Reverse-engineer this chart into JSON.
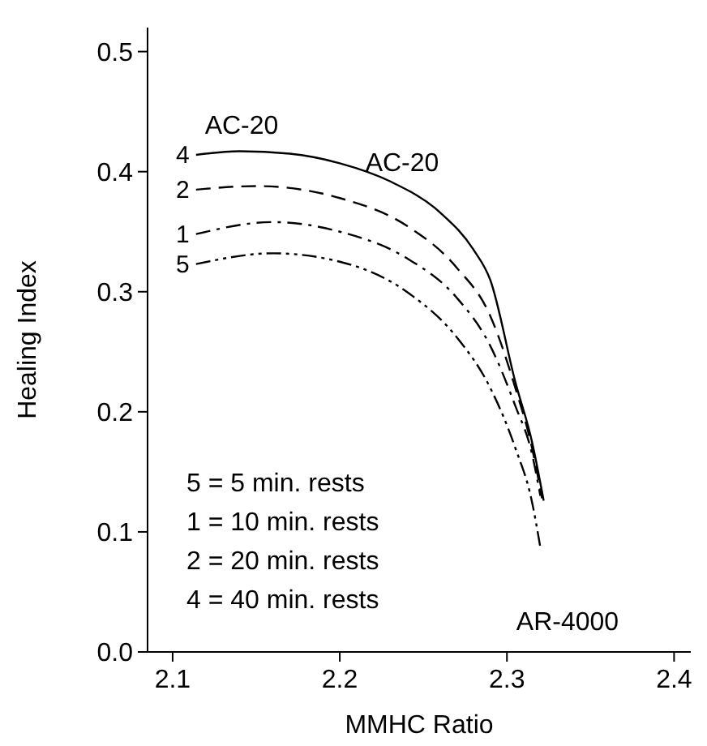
{
  "chart_data": {
    "type": "line",
    "xlabel": "MMHC Ratio",
    "ylabel": "Healing Index",
    "xlim": [
      2.085,
      2.41
    ],
    "ylim": [
      0,
      0.52
    ],
    "xticks": [
      2.1,
      2.2,
      2.3,
      2.4
    ],
    "yticks": [
      {
        "value": 0,
        "label": "0.0"
      },
      0.1,
      0.2,
      0.3,
      0.4,
      0.5
    ],
    "marker": "none",
    "series": [
      {
        "name": "4",
        "color": "#000000",
        "line_style": "solid",
        "x": [
          2.114,
          2.14,
          2.17,
          2.2,
          2.23,
          2.26,
          2.28,
          2.29,
          2.305,
          2.315,
          2.322
        ],
        "values": [
          0.414,
          0.417,
          0.415,
          0.407,
          0.392,
          0.366,
          0.335,
          0.31,
          0.225,
          0.175,
          0.126
        ]
      },
      {
        "name": "2",
        "color": "#000000",
        "line_style": "dashed",
        "x": [
          2.114,
          2.15,
          2.2,
          2.24,
          2.27,
          2.29,
          2.305,
          2.315,
          2.321
        ],
        "values": [
          0.385,
          0.388,
          0.378,
          0.355,
          0.32,
          0.28,
          0.22,
          0.17,
          0.128
        ]
      },
      {
        "name": "1",
        "color": "#000000",
        "line_style": "dashdot",
        "x": [
          2.114,
          2.16,
          2.2,
          2.24,
          2.27,
          2.29,
          2.305,
          2.315,
          2.32
        ],
        "values": [
          0.348,
          0.358,
          0.35,
          0.328,
          0.295,
          0.255,
          0.205,
          0.165,
          0.13
        ]
      },
      {
        "name": "5",
        "color": "#000000",
        "line_style": "dashdotdot",
        "x": [
          2.114,
          2.16,
          2.2,
          2.24,
          2.27,
          2.29,
          2.305,
          2.315,
          2.32
        ],
        "values": [
          0.323,
          0.332,
          0.325,
          0.3,
          0.262,
          0.22,
          0.17,
          0.125,
          0.087
        ]
      }
    ],
    "annotations": [
      "AC-20",
      "AC-20",
      "AR-4000",
      "5 = 5 min. rests",
      "1 = 10 min. rests",
      "2 = 20 min. rests",
      "4 = 40 min. rests"
    ]
  }
}
